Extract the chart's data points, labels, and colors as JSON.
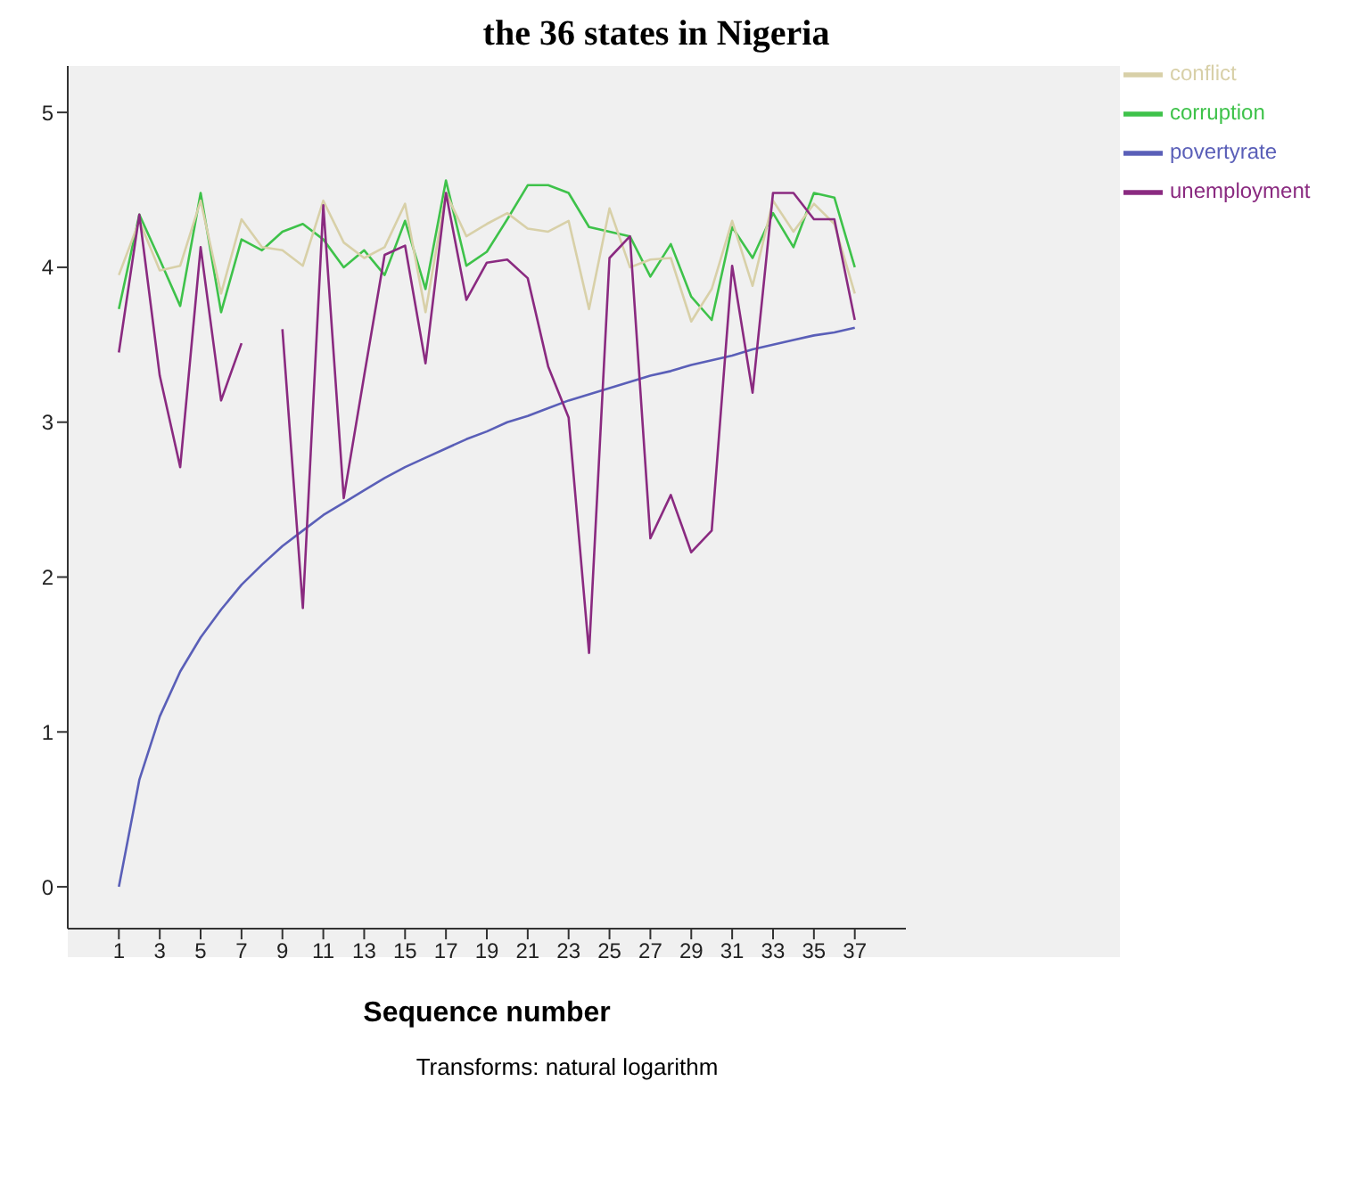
{
  "chart_data": {
    "type": "line",
    "title": "the 36 states in Nigeria",
    "xlabel": "Sequence number",
    "annotations": [
      "Transforms: natural logarithm"
    ],
    "x": [
      1,
      2,
      3,
      4,
      5,
      6,
      7,
      8,
      9,
      10,
      11,
      12,
      13,
      14,
      15,
      16,
      17,
      18,
      19,
      20,
      21,
      22,
      23,
      24,
      25,
      26,
      27,
      28,
      29,
      30,
      31,
      32,
      33,
      34,
      35,
      36,
      37
    ],
    "xlim": [
      -1.5,
      39.5
    ],
    "xticks": [
      1,
      3,
      5,
      7,
      9,
      11,
      13,
      15,
      17,
      19,
      21,
      23,
      25,
      27,
      29,
      31,
      33,
      35,
      37
    ],
    "ylim": [
      -0.27,
      5.3
    ],
    "yticks": [
      0,
      1,
      2,
      3,
      4,
      5
    ],
    "grid": false,
    "legend": "top right",
    "line_style": "solid",
    "series": [
      {
        "name": "povertyrate",
        "color": "#5a5fb8",
        "values": [
          0,
          0.69,
          1.1,
          1.39,
          1.61,
          1.79,
          1.95,
          2.08,
          2.2,
          2.3,
          2.4,
          2.48,
          2.56,
          2.64,
          2.71,
          2.77,
          2.83,
          2.89,
          2.94,
          3.0,
          3.04,
          3.09,
          3.14,
          3.18,
          3.22,
          3.26,
          3.3,
          3.33,
          3.37,
          3.4,
          3.43,
          3.47,
          3.5,
          3.53,
          3.56,
          3.58,
          3.61
        ]
      },
      {
        "name": "corruption",
        "color": "#3ec24a",
        "values": [
          3.73,
          4.34,
          4.05,
          3.75,
          4.48,
          3.71,
          4.18,
          4.11,
          4.23,
          4.28,
          4.18,
          4.0,
          4.11,
          3.95,
          4.3,
          3.86,
          4.56,
          4.01,
          4.1,
          4.31,
          4.53,
          4.53,
          4.48,
          4.26,
          4.23,
          4.2,
          3.94,
          4.15,
          3.81,
          3.66,
          4.26,
          4.06,
          4.35,
          4.13,
          4.48,
          4.45,
          4.0
        ]
      },
      {
        "name": "conflict",
        "color": "#d8d0a8",
        "values": [
          3.95,
          4.3,
          3.98,
          4.01,
          4.43,
          3.83,
          4.31,
          4.13,
          4.11,
          4.01,
          4.43,
          4.16,
          4.06,
          4.13,
          4.41,
          3.71,
          4.48,
          4.2,
          4.28,
          4.35,
          4.25,
          4.23,
          4.3,
          3.73,
          4.38,
          4.0,
          4.05,
          4.06,
          3.65,
          3.86,
          4.3,
          3.88,
          4.43,
          4.23,
          4.41,
          4.28,
          3.83
        ]
      },
      {
        "name": "unemployment",
        "color": "#8a2a80",
        "values": [
          3.45,
          4.34,
          3.3,
          2.71,
          4.13,
          3.14,
          3.51,
          null,
          3.6,
          1.8,
          4.4,
          2.51,
          3.3,
          4.08,
          4.14,
          3.38,
          4.48,
          3.79,
          4.03,
          4.05,
          3.93,
          3.36,
          3.03,
          1.51,
          4.06,
          4.2,
          2.25,
          2.53,
          2.16,
          2.3,
          4.01,
          3.19,
          4.48,
          4.48,
          4.31,
          4.31,
          3.66
        ]
      }
    ]
  }
}
